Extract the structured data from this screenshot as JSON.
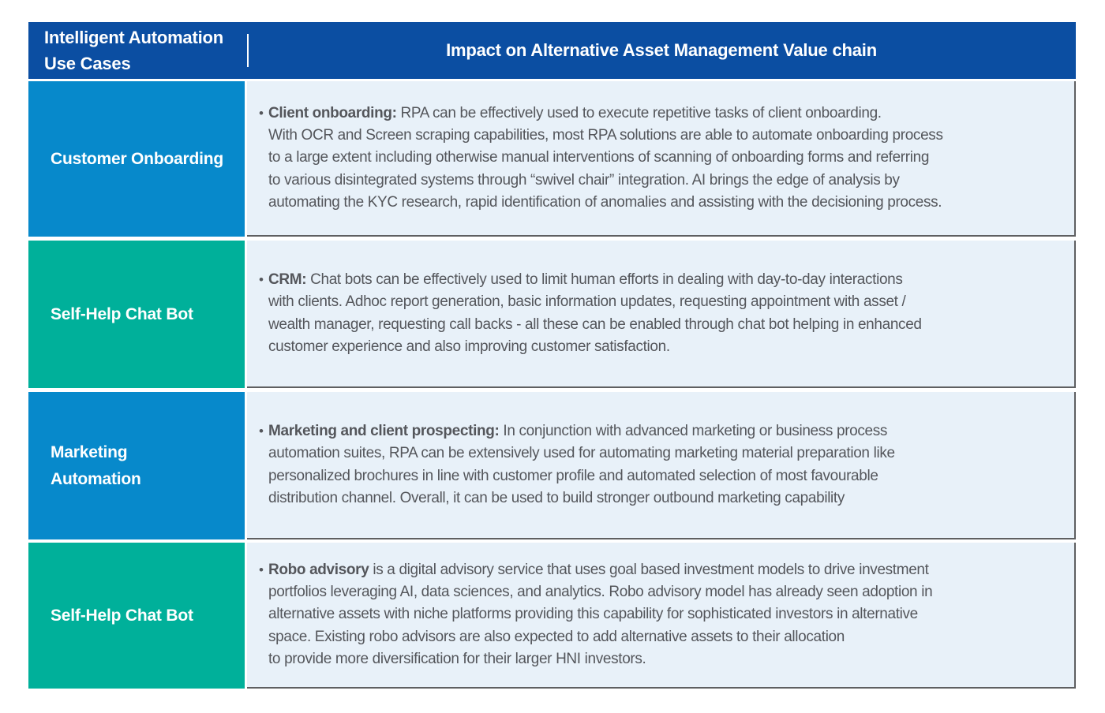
{
  "colors": {
    "header_bg": "#0B4EA2",
    "blue": "#0789CB",
    "teal": "#00B09A",
    "content_bg": "#E8F1F9",
    "text": "#54565B",
    "line": "#5E5F61",
    "header_text": "#FFFFFF",
    "bullet": "#54565B"
  },
  "header": {
    "left_title": "Intelligent Automation\nUse Cases",
    "right_title": "Impact on Alternative Asset Management Value chain"
  },
  "bullet_glyph": "•",
  "rows": [
    {
      "label_lines": [
        "Customer Onboarding"
      ],
      "color_key": "blue",
      "lines": [
        {
          "lead": "Client onboarding:",
          "text": " RPA can be effectively used to execute repetitive tasks of client onboarding."
        },
        {
          "text": "With OCR and Screen scraping capabilities, most RPA solutions are able to automate onboarding process"
        },
        {
          "text": "to a large extent including otherwise manual interventions of scanning of onboarding forms and referring"
        },
        {
          "text": "to various disintegrated systems through “swivel chair” integration. AI brings the edge of analysis by"
        },
        {
          "text": "automating the KYC research, rapid identification of anomalies and assisting with the decisioning process."
        }
      ]
    },
    {
      "label_lines": [
        "Self-Help Chat Bot"
      ],
      "color_key": "teal",
      "lines": [
        {
          "lead": "CRM:",
          "text": " Chat bots can be effectively used to limit human efforts in dealing with day-to-day interactions"
        },
        {
          "text": "with clients. Adhoc report generation, basic information updates, requesting appointment with asset /"
        },
        {
          "text": "wealth manager, requesting call backs - all these can be enabled through chat bot helping in enhanced"
        },
        {
          "text": "customer experience and also improving customer satisfaction."
        }
      ]
    },
    {
      "label_lines": [
        "Marketing",
        "Automation"
      ],
      "color_key": "blue",
      "lines": [
        {
          "lead": "Marketing and client prospecting:",
          "text": " In conjunction with advanced marketing or business process"
        },
        {
          "text": "automation suites, RPA can be extensively used for automating marketing material preparation like"
        },
        {
          "text": "personalized brochures in line with customer profile and automated selection of most favourable"
        },
        {
          "text": "distribution channel. Overall, it can be used to build stronger outbound marketing capability"
        }
      ]
    },
    {
      "label_lines": [
        "Self-Help Chat Bot"
      ],
      "color_key": "teal",
      "lines": [
        {
          "lead": "Robo advisory",
          "text": " is a digital advisory service that uses goal based investment models to drive investment"
        },
        {
          "text": "portfolios leveraging AI, data sciences, and analytics. Robo advisory model has already seen adoption in"
        },
        {
          "text": "alternative assets with niche platforms providing this capability for sophisticated investors in alternative"
        },
        {
          "text": "space. Existing robo advisors are also expected to add alternative assets to their allocation"
        },
        {
          "text": "to provide more diversification for their larger HNI investors."
        }
      ]
    }
  ]
}
